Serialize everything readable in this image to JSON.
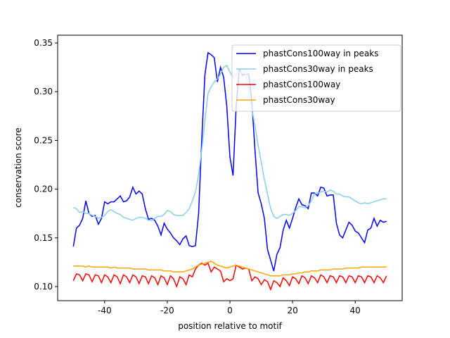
{
  "chart_data": {
    "type": "line",
    "xlabel": "position relative to motif",
    "ylabel": "conservation score",
    "xlim": [
      -55,
      55
    ],
    "ylim": [
      0.0855,
      0.358
    ],
    "xticks": [
      -40,
      -20,
      0,
      20,
      40
    ],
    "yticks": [
      {
        "value": 0.1,
        "label": "0.10"
      },
      0.15,
      {
        "value": 0.2,
        "label": "0.20"
      },
      0.25,
      {
        "value": 0.3,
        "label": "0.30"
      },
      0.35
    ],
    "legend": "upper right",
    "x": [
      -50,
      -49,
      -48,
      -47,
      -46,
      -45,
      -44,
      -43,
      -42,
      -41,
      -40,
      -39,
      -38,
      -37,
      -36,
      -35,
      -34,
      -33,
      -32,
      -31,
      -30,
      -29,
      -28,
      -27,
      -26,
      -25,
      -24,
      -23,
      -22,
      -21,
      -20,
      -19,
      -18,
      -17,
      -16,
      -15,
      -14,
      -13,
      -12,
      -11,
      -10,
      -9,
      -8,
      -7,
      -6,
      -5,
      -4,
      -3,
      -2,
      -1,
      0,
      1,
      2,
      3,
      4,
      5,
      6,
      7,
      8,
      9,
      10,
      11,
      12,
      13,
      14,
      15,
      16,
      17,
      18,
      19,
      20,
      21,
      22,
      23,
      24,
      25,
      26,
      27,
      28,
      29,
      30,
      31,
      32,
      33,
      34,
      35,
      36,
      37,
      38,
      39,
      40,
      41,
      42,
      43,
      44,
      45,
      46,
      47,
      48,
      49,
      50
    ],
    "series": [
      {
        "name": "phastCons100way in peaks",
        "color": "#0000ff",
        "values": [
          0.141,
          0.16,
          0.163,
          0.17,
          0.188,
          0.175,
          0.172,
          0.173,
          0.164,
          0.17,
          0.187,
          0.185,
          0.187,
          0.187,
          0.19,
          0.193,
          0.187,
          0.188,
          0.192,
          0.202,
          0.195,
          0.198,
          0.195,
          0.18,
          0.169,
          0.17,
          0.168,
          0.162,
          0.153,
          0.165,
          0.159,
          0.155,
          0.15,
          0.147,
          0.143,
          0.149,
          0.152,
          0.142,
          0.141,
          0.142,
          0.175,
          0.25,
          0.317,
          0.34,
          0.338,
          0.335,
          0.31,
          0.325,
          0.315,
          0.285,
          0.233,
          0.214,
          0.285,
          0.323,
          0.317,
          0.318,
          0.318,
          0.29,
          0.24,
          0.196,
          0.185,
          0.17,
          0.138,
          0.127,
          0.116,
          0.133,
          0.14,
          0.158,
          0.168,
          0.16,
          0.17,
          0.181,
          0.19,
          0.184,
          0.183,
          0.18,
          0.196,
          0.196,
          0.193,
          0.202,
          0.201,
          0.193,
          0.194,
          0.194,
          0.165,
          0.153,
          0.15,
          0.158,
          0.166,
          0.163,
          0.157,
          0.155,
          0.15,
          0.145,
          0.158,
          0.16,
          0.17,
          0.162,
          0.168,
          0.166,
          0.167
        ]
      },
      {
        "name": "phastCons30way in peaks",
        "color": "#87ceeb",
        "values": [
          0.181,
          0.18,
          0.176,
          0.177,
          0.175,
          0.175,
          0.173,
          0.172,
          0.17,
          0.171,
          0.173,
          0.177,
          0.179,
          0.177,
          0.175,
          0.174,
          0.171,
          0.17,
          0.169,
          0.168,
          0.17,
          0.171,
          0.171,
          0.17,
          0.168,
          0.168,
          0.17,
          0.172,
          0.172,
          0.174,
          0.178,
          0.177,
          0.174,
          0.173,
          0.173,
          0.173,
          0.176,
          0.18,
          0.188,
          0.197,
          0.215,
          0.24,
          0.27,
          0.298,
          0.305,
          0.31,
          0.313,
          0.318,
          0.325,
          0.327,
          0.32,
          0.315,
          0.318,
          0.32,
          0.319,
          0.318,
          0.3,
          0.282,
          0.265,
          0.245,
          0.228,
          0.21,
          0.195,
          0.18,
          0.172,
          0.17,
          0.172,
          0.174,
          0.174,
          0.173,
          0.175,
          0.178,
          0.182,
          0.182,
          0.181,
          0.183,
          0.188,
          0.195,
          0.196,
          0.197,
          0.198,
          0.197,
          0.199,
          0.198,
          0.195,
          0.195,
          0.193,
          0.192,
          0.192,
          0.19,
          0.188,
          0.186,
          0.185,
          0.186,
          0.185,
          0.186,
          0.187,
          0.188,
          0.189,
          0.19,
          0.19
        ]
      },
      {
        "name": "phastCons100way",
        "color": "#ff0000",
        "values": [
          0.106,
          0.113,
          0.112,
          0.106,
          0.113,
          0.112,
          0.105,
          0.112,
          0.111,
          0.104,
          0.112,
          0.11,
          0.104,
          0.112,
          0.11,
          0.103,
          0.112,
          0.11,
          0.104,
          0.112,
          0.11,
          0.103,
          0.111,
          0.11,
          0.103,
          0.111,
          0.109,
          0.102,
          0.111,
          0.109,
          0.102,
          0.111,
          0.108,
          0.1,
          0.11,
          0.108,
          0.102,
          0.112,
          0.11,
          0.118,
          0.122,
          0.124,
          0.122,
          0.124,
          0.115,
          0.12,
          0.118,
          0.116,
          0.105,
          0.108,
          0.106,
          0.108,
          0.122,
          0.12,
          0.118,
          0.119,
          0.118,
          0.106,
          0.11,
          0.108,
          0.102,
          0.107,
          0.105,
          0.097,
          0.106,
          0.104,
          0.1,
          0.109,
          0.106,
          0.101,
          0.11,
          0.108,
          0.103,
          0.111,
          0.109,
          0.103,
          0.111,
          0.109,
          0.104,
          0.112,
          0.11,
          0.104,
          0.111,
          0.11,
          0.104,
          0.111,
          0.11,
          0.104,
          0.111,
          0.11,
          0.104,
          0.111,
          0.11,
          0.104,
          0.111,
          0.11,
          0.104,
          0.111,
          0.109,
          0.104,
          0.111
        ]
      },
      {
        "name": "phastCons30way",
        "color": "#ffa500",
        "values": [
          0.121,
          0.121,
          0.121,
          0.121,
          0.12,
          0.121,
          0.12,
          0.12,
          0.12,
          0.12,
          0.12,
          0.12,
          0.119,
          0.12,
          0.119,
          0.119,
          0.119,
          0.119,
          0.119,
          0.118,
          0.118,
          0.118,
          0.118,
          0.118,
          0.117,
          0.117,
          0.117,
          0.117,
          0.117,
          0.116,
          0.116,
          0.116,
          0.115,
          0.115,
          0.115,
          0.115,
          0.116,
          0.117,
          0.118,
          0.12,
          0.122,
          0.123,
          0.124,
          0.125,
          0.126,
          0.124,
          0.122,
          0.121,
          0.12,
          0.119,
          0.12,
          0.121,
          0.122,
          0.121,
          0.12,
          0.119,
          0.118,
          0.117,
          0.116,
          0.115,
          0.114,
          0.113,
          0.112,
          0.111,
          0.111,
          0.111,
          0.111,
          0.112,
          0.112,
          0.112,
          0.113,
          0.113,
          0.114,
          0.114,
          0.115,
          0.115,
          0.116,
          0.116,
          0.116,
          0.117,
          0.117,
          0.117,
          0.117,
          0.118,
          0.118,
          0.118,
          0.118,
          0.119,
          0.119,
          0.119,
          0.119,
          0.119,
          0.12,
          0.12,
          0.12,
          0.12,
          0.12,
          0.12,
          0.12,
          0.12,
          0.12
        ]
      }
    ]
  }
}
